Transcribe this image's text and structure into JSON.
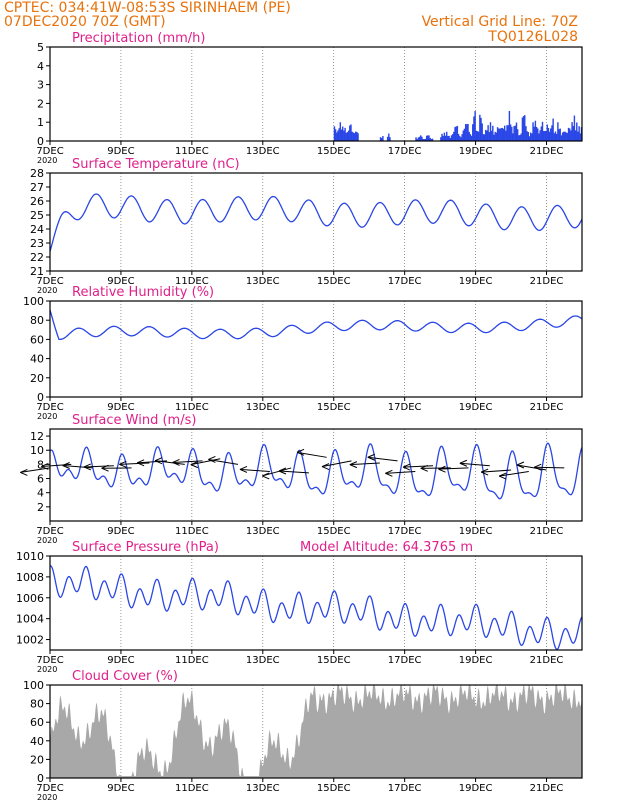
{
  "header": {
    "line1": "CPTEC:   034:41W-08:53S   SIRINHAEM (PE)",
    "line2": "07DEC2020 70Z (GMT)",
    "grid_note": "Vertical Grid Line: 70Z",
    "code": "TQ0126L028"
  },
  "colors": {
    "header": "#e8720c",
    "title": "#e0208a",
    "series": "#2a46e6",
    "cloud": "#a8a8a8",
    "grid": "#555555",
    "arrow": "#000000"
  },
  "x_axis": {
    "ticks": [
      "7DEC",
      "9DEC",
      "11DEC",
      "13DEC",
      "15DEC",
      "17DEC",
      "19DEC",
      "21DEC"
    ],
    "tick_days": [
      0,
      2,
      4,
      6,
      8,
      10,
      12,
      14
    ],
    "span_days": 15,
    "year_label": "2020"
  },
  "chart_data": [
    {
      "id": "precip",
      "type": "bar",
      "title": "Precipitation (mm/h)",
      "ylim": [
        0,
        5
      ],
      "yticks": [
        "0",
        "1",
        "2",
        "3",
        "4",
        "5"
      ],
      "x_days": [
        8.0,
        8.1,
        8.2,
        8.3,
        8.4,
        8.5,
        8.6,
        9.3,
        9.5,
        10.3,
        10.4,
        10.5,
        10.6,
        10.7,
        11.0,
        11.1,
        11.2,
        11.3,
        11.4,
        11.5,
        11.6,
        11.7,
        11.8,
        11.9,
        12.0,
        12.1,
        12.2,
        12.3,
        12.4,
        12.5,
        12.6,
        12.7,
        12.8,
        12.9,
        13.0,
        13.1,
        13.2,
        13.3,
        13.4,
        13.5,
        13.6,
        13.7,
        13.8,
        13.9,
        14.0,
        14.1,
        14.2,
        14.3,
        14.4,
        14.5,
        14.6,
        14.7,
        14.8,
        14.9
      ],
      "values": [
        0.8,
        1.0,
        0.9,
        0.7,
        0.9,
        0.8,
        0.5,
        0.3,
        0.4,
        0.2,
        0.3,
        0.2,
        0.3,
        0.2,
        0.4,
        0.5,
        0.3,
        0.6,
        0.9,
        0.4,
        0.7,
        1.2,
        0.5,
        1.6,
        0.8,
        1.4,
        0.6,
        0.9,
        1.0,
        0.5,
        1.3,
        0.7,
        1.1,
        1.6,
        0.8,
        1.0,
        0.6,
        1.4,
        0.9,
        0.5,
        1.2,
        0.8,
        1.1,
        0.7,
        0.9,
        1.2,
        0.6,
        1.0,
        0.5,
        0.8,
        0.7,
        1.5,
        1.0,
        0.8
      ]
    },
    {
      "id": "temp",
      "type": "line",
      "title": "Surface Temperature (nC)",
      "ylim": [
        21,
        28
      ],
      "yticks": [
        "21",
        "22",
        "23",
        "24",
        "25",
        "26",
        "27",
        "28"
      ],
      "model": "temp"
    },
    {
      "id": "rh",
      "type": "line",
      "title": "Relative Humidity (%)",
      "ylim": [
        0,
        100
      ],
      "yticks": [
        "0",
        "20",
        "40",
        "60",
        "80",
        "100"
      ],
      "model": "rh"
    },
    {
      "id": "wind",
      "type": "line",
      "title": "Surface Wind (m/s)",
      "ylim": [
        0,
        13
      ],
      "yticks": [
        "2",
        "4",
        "6",
        "8",
        "10",
        "12"
      ],
      "ytick_values": [
        2,
        4,
        6,
        8,
        10,
        12
      ],
      "model": "wind",
      "arrows": {
        "x_days": [
          0.0,
          0.6,
          1.2,
          1.8,
          2.3,
          2.8,
          3.3,
          3.8,
          4.3,
          4.8,
          5.3,
          6.2,
          6.8,
          7.3,
          7.8,
          8.5,
          9.3,
          9.8,
          10.3,
          10.8,
          11.3,
          11.8,
          12.4,
          13.0,
          13.5,
          14.0,
          14.5
        ],
        "speeds": [
          7.5,
          8.0,
          7.5,
          7.8,
          7.5,
          8.2,
          8.5,
          8.0,
          8.5,
          8.8,
          8.0,
          7.0,
          7.5,
          6.8,
          9.0,
          8.5,
          8.2,
          8.5,
          7.0,
          7.8,
          7.5,
          7.5,
          7.8,
          7.2,
          7.0,
          7.2,
          7.5
        ]
      }
    },
    {
      "id": "pres",
      "type": "line",
      "title": "Surface Pressure (hPa)",
      "subtitle": "Model Altitude: 64.3765 m",
      "ylim": [
        1001,
        1010
      ],
      "yticks": [
        "1002",
        "1004",
        "1006",
        "1008",
        "1010"
      ],
      "ytick_values": [
        1002,
        1004,
        1006,
        1008,
        1010
      ],
      "model": "pres"
    },
    {
      "id": "cloud",
      "type": "area",
      "title": "Cloud Cover (%)",
      "ylim": [
        0,
        100
      ],
      "yticks": [
        "0",
        "20",
        "40",
        "60",
        "80",
        "100"
      ],
      "model": "cloud"
    }
  ]
}
